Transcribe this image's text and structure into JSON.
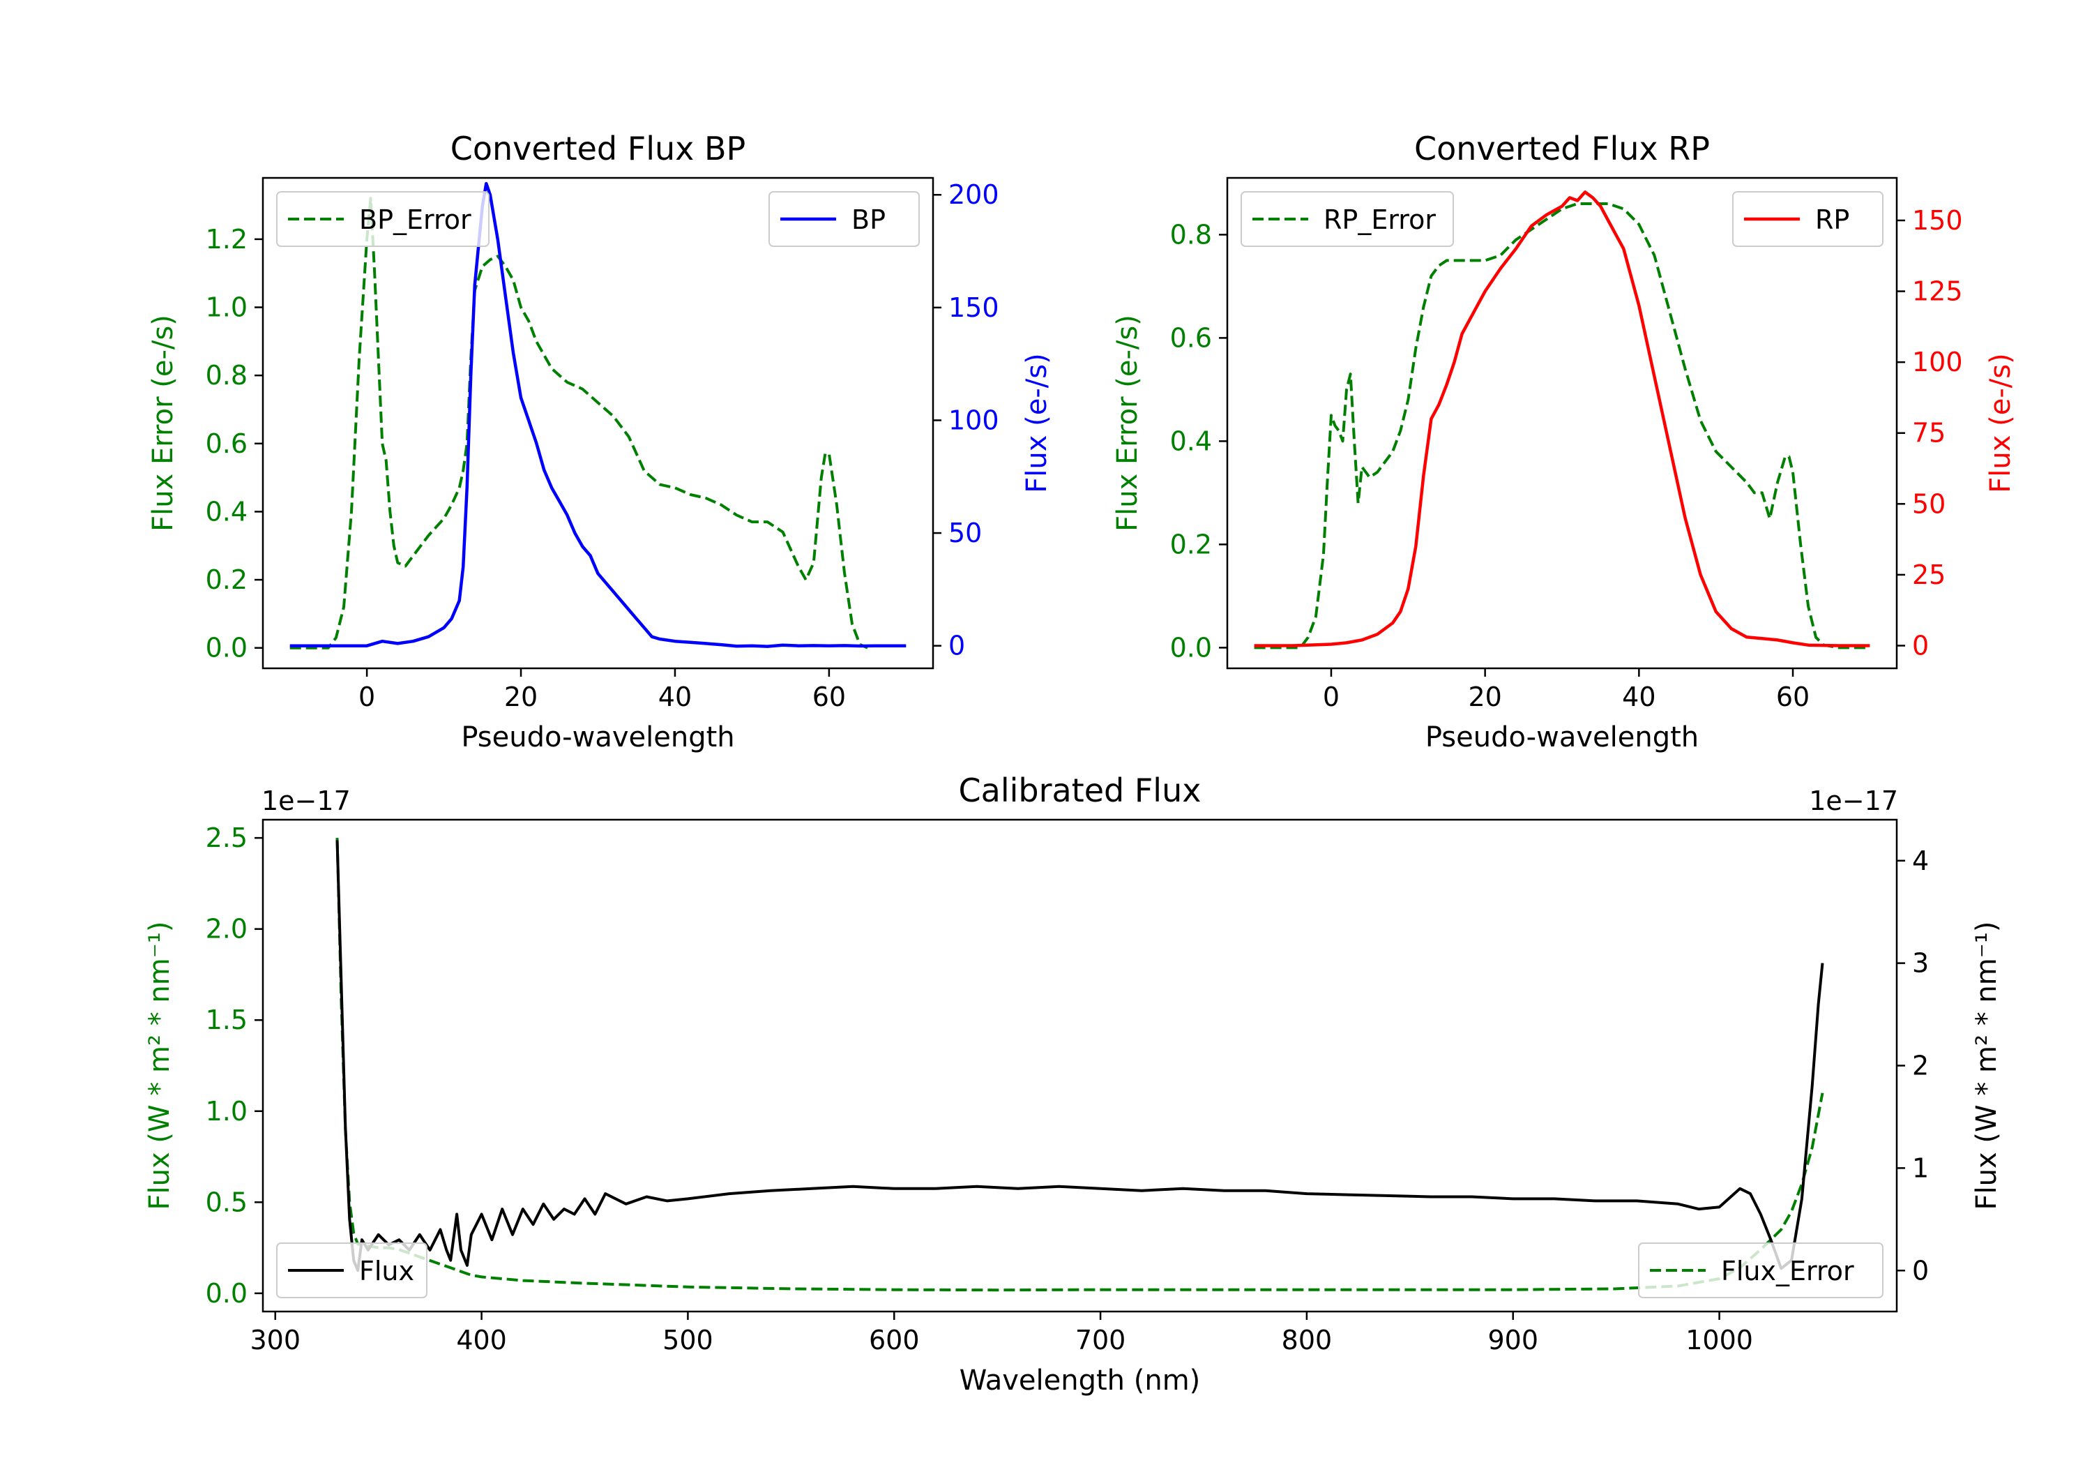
{
  "chart_data": [
    {
      "id": "bp",
      "type": "line",
      "title": "Converted Flux BP",
      "xlabel": "Pseudo-wavelength",
      "xlim": [
        -13.5,
        73.5
      ],
      "x_ticks": [
        0,
        20,
        40,
        60
      ],
      "y_left": {
        "label": "Flux Error (e-/s)",
        "color": "#008000",
        "lim": [
          -0.06,
          1.38
        ],
        "ticks": [
          0.0,
          0.2,
          0.4,
          0.6,
          0.8,
          1.0,
          1.2
        ],
        "tick_labels": [
          "0.0",
          "0.2",
          "0.4",
          "0.6",
          "0.8",
          "1.0",
          "1.2"
        ]
      },
      "y_right": {
        "label": "Flux (e-/s)",
        "color": "#0000ff",
        "lim": [
          -10,
          207.5
        ],
        "ticks": [
          0,
          50,
          100,
          150,
          200
        ],
        "tick_labels": [
          "0",
          "50",
          "100",
          "150",
          "200"
        ]
      },
      "series": [
        {
          "name": "BP_Error",
          "axis": "left",
          "color": "#008000",
          "dash": true,
          "legend_loc": "upper left",
          "x": [
            -10,
            -5,
            -4,
            -3,
            -2,
            -1,
            0,
            0.5,
            1,
            1.5,
            2,
            2.5,
            3,
            3.5,
            4,
            5,
            6,
            8,
            10,
            11,
            12,
            12.5,
            13,
            13.5,
            14,
            15,
            16,
            17,
            18,
            19,
            20,
            21,
            22,
            23,
            24,
            25,
            26,
            27,
            28,
            30,
            32,
            34,
            36,
            38,
            40,
            42,
            44,
            46,
            48,
            50,
            52,
            54,
            56,
            57,
            58,
            59,
            59.5,
            60,
            61,
            62,
            63,
            64,
            65
          ],
          "y": [
            0,
            0,
            0.03,
            0.12,
            0.4,
            0.85,
            1.2,
            1.32,
            1.1,
            0.85,
            0.6,
            0.55,
            0.4,
            0.3,
            0.25,
            0.24,
            0.27,
            0.33,
            0.38,
            0.42,
            0.47,
            0.52,
            0.6,
            0.85,
            1.05,
            1.12,
            1.14,
            1.15,
            1.12,
            1.08,
            1.0,
            0.96,
            0.9,
            0.86,
            0.82,
            0.8,
            0.78,
            0.77,
            0.76,
            0.72,
            0.68,
            0.62,
            0.52,
            0.48,
            0.47,
            0.45,
            0.44,
            0.42,
            0.39,
            0.37,
            0.37,
            0.34,
            0.24,
            0.2,
            0.25,
            0.5,
            0.57,
            0.57,
            0.42,
            0.22,
            0.07,
            0.01,
            0
          ],
          "line_width": 4
        },
        {
          "name": "BP",
          "axis": "right",
          "color": "#0000ff",
          "dash": false,
          "legend_loc": "upper right",
          "x": [
            -10,
            -5,
            0,
            2,
            4,
            6,
            8,
            10,
            11,
            12,
            12.5,
            13,
            13.5,
            14,
            15,
            15.5,
            16,
            17,
            18,
            19,
            20,
            21,
            22,
            23,
            24,
            25,
            26,
            27,
            28,
            29,
            30,
            32,
            34,
            35,
            36,
            37,
            38,
            40,
            42,
            44,
            46,
            48,
            50,
            52,
            54,
            56,
            58,
            60,
            62,
            64,
            66,
            68,
            70
          ],
          "y": [
            0,
            0,
            0,
            2,
            1,
            2,
            4,
            8,
            12,
            20,
            35,
            70,
            120,
            160,
            195,
            205,
            200,
            180,
            155,
            130,
            110,
            100,
            90,
            78,
            70,
            64,
            58,
            50,
            44,
            40,
            32,
            24,
            16,
            12,
            8,
            4,
            3,
            2,
            1.5,
            1,
            0.5,
            -0.2,
            0,
            -0.3,
            0.3,
            0,
            0.1,
            0,
            0.1,
            -0.1,
            0,
            0,
            0
          ],
          "line_width": 4.5
        }
      ]
    },
    {
      "id": "rp",
      "type": "line",
      "title": "Converted Flux RP",
      "xlabel": "Pseudo-wavelength",
      "xlim": [
        -13.5,
        73.5
      ],
      "x_ticks": [
        0,
        20,
        40,
        60
      ],
      "y_left": {
        "label": "Flux Error (e-/s)",
        "color": "#008000",
        "lim": [
          -0.04,
          0.91
        ],
        "ticks": [
          0.0,
          0.2,
          0.4,
          0.6,
          0.8
        ],
        "tick_labels": [
          "0.0",
          "0.2",
          "0.4",
          "0.6",
          "0.8"
        ]
      },
      "y_right": {
        "label": "Flux (e-/s)",
        "color": "#ff0000",
        "lim": [
          -8,
          165
        ],
        "ticks": [
          0,
          25,
          50,
          75,
          100,
          125,
          150
        ],
        "tick_labels": [
          "0",
          "25",
          "50",
          "75",
          "100",
          "125",
          "150"
        ]
      },
      "series": [
        {
          "name": "RP_Error",
          "axis": "left",
          "color": "#008000",
          "dash": true,
          "legend_loc": "upper left",
          "x": [
            -10,
            -4,
            -3,
            -2,
            -1,
            -0.5,
            0,
            0.5,
            1,
            1.5,
            2,
            2.5,
            3,
            3.5,
            4,
            5,
            6,
            7,
            8,
            9,
            10,
            11,
            12,
            13,
            14,
            15,
            16,
            18,
            20,
            22,
            24,
            26,
            28,
            30,
            32,
            33,
            34,
            36,
            38,
            40,
            42,
            44,
            46,
            48,
            50,
            52,
            54,
            55,
            56,
            57,
            58,
            59,
            59.5,
            60,
            61,
            62,
            63,
            64,
            66,
            70
          ],
          "y": [
            0,
            0,
            0.02,
            0.06,
            0.18,
            0.32,
            0.45,
            0.43,
            0.42,
            0.4,
            0.5,
            0.53,
            0.4,
            0.28,
            0.35,
            0.33,
            0.34,
            0.36,
            0.38,
            0.42,
            0.48,
            0.58,
            0.66,
            0.72,
            0.74,
            0.75,
            0.75,
            0.75,
            0.75,
            0.76,
            0.79,
            0.81,
            0.83,
            0.85,
            0.86,
            0.86,
            0.86,
            0.86,
            0.85,
            0.82,
            0.76,
            0.65,
            0.54,
            0.44,
            0.38,
            0.35,
            0.32,
            0.3,
            0.3,
            0.25,
            0.32,
            0.37,
            0.37,
            0.34,
            0.2,
            0.08,
            0.02,
            0.005,
            0,
            0
          ],
          "line_width": 4
        },
        {
          "name": "RP",
          "axis": "right",
          "color": "#ff0000",
          "dash": false,
          "legend_loc": "upper right",
          "x": [
            -10,
            -5,
            0,
            2,
            4,
            6,
            8,
            9,
            10,
            11,
            12,
            13,
            14,
            15,
            16,
            17,
            18,
            19,
            20,
            22,
            24,
            26,
            28,
            30,
            31,
            32,
            33,
            34,
            35,
            36,
            37,
            38,
            40,
            42,
            44,
            46,
            48,
            50,
            52,
            54,
            56,
            58,
            60,
            62,
            66,
            70
          ],
          "y": [
            0,
            0,
            0.5,
            1,
            2,
            4,
            8,
            12,
            20,
            35,
            60,
            80,
            85,
            92,
            100,
            110,
            115,
            120,
            125,
            133,
            140,
            148,
            152,
            155,
            158,
            157,
            160,
            158,
            155,
            150,
            145,
            140,
            120,
            95,
            70,
            45,
            25,
            12,
            6,
            3,
            2.5,
            2,
            1,
            0.2,
            0,
            0
          ],
          "line_width": 4.5
        }
      ]
    },
    {
      "id": "cal",
      "type": "line",
      "title": "Calibrated Flux",
      "xlabel": "Wavelength (nm)",
      "xlim": [
        294,
        1086
      ],
      "x_ticks": [
        300,
        400,
        500,
        600,
        700,
        800,
        900,
        1000
      ],
      "y_left": {
        "label": "Flux (W * m² * nm⁻¹)",
        "color": "#008000",
        "lim": [
          -0.1,
          2.6
        ],
        "ticks": [
          0.0,
          0.5,
          1.0,
          1.5,
          2.0,
          2.5
        ],
        "tick_labels": [
          "0.0",
          "0.5",
          "1.0",
          "1.5",
          "2.0",
          "2.5"
        ],
        "offset_label": "1e−17"
      },
      "y_right": {
        "label": "Flux (W * m² * nm⁻¹)",
        "color": "#000000",
        "lim": [
          -0.4,
          4.4
        ],
        "ticks": [
          0,
          1,
          2,
          3,
          4
        ],
        "tick_labels": [
          "0",
          "1",
          "2",
          "3",
          "4"
        ],
        "offset_label": "1e−17"
      },
      "series": [
        {
          "name": "Flux_Error",
          "axis": "left",
          "color": "#008000",
          "dash": true,
          "legend_loc": "lower right",
          "x": [
            330,
            332,
            334,
            336,
            338,
            340,
            345,
            350,
            355,
            360,
            365,
            370,
            375,
            380,
            385,
            390,
            395,
            400,
            410,
            420,
            430,
            440,
            450,
            475,
            500,
            550,
            600,
            650,
            700,
            750,
            800,
            850,
            900,
            950,
            980,
            1000,
            1010,
            1020,
            1030,
            1035,
            1040,
            1045,
            1050
          ],
          "y": [
            2.5,
            1.6,
            0.9,
            0.5,
            0.33,
            0.27,
            0.26,
            0.25,
            0.25,
            0.24,
            0.22,
            0.2,
            0.18,
            0.16,
            0.14,
            0.12,
            0.1,
            0.09,
            0.08,
            0.07,
            0.065,
            0.06,
            0.055,
            0.045,
            0.035,
            0.025,
            0.02,
            0.018,
            0.02,
            0.02,
            0.02,
            0.02,
            0.02,
            0.025,
            0.04,
            0.08,
            0.14,
            0.24,
            0.35,
            0.45,
            0.6,
            0.8,
            1.1
          ],
          "line_width": 4
        },
        {
          "name": "Flux",
          "axis": "right",
          "color": "#000000",
          "dash": false,
          "legend_loc": "lower left",
          "x": [
            330,
            332,
            334,
            336,
            338,
            340,
            342,
            345,
            350,
            355,
            360,
            365,
            370,
            375,
            380,
            383,
            385,
            388,
            390,
            393,
            395,
            400,
            405,
            410,
            415,
            420,
            425,
            430,
            435,
            440,
            445,
            450,
            455,
            460,
            470,
            480,
            490,
            500,
            520,
            540,
            560,
            580,
            600,
            620,
            640,
            660,
            680,
            700,
            720,
            740,
            760,
            780,
            800,
            820,
            840,
            860,
            880,
            900,
            920,
            940,
            960,
            980,
            990,
            1000,
            1010,
            1015,
            1020,
            1025,
            1030,
            1035,
            1040,
            1045,
            1048,
            1050
          ],
          "y": [
            4.2,
            2.8,
            1.4,
            0.5,
            0.1,
            0.0,
            0.3,
            0.2,
            0.35,
            0.25,
            0.3,
            0.2,
            0.35,
            0.2,
            0.4,
            0.2,
            0.1,
            0.55,
            0.2,
            0.05,
            0.35,
            0.55,
            0.3,
            0.6,
            0.35,
            0.6,
            0.45,
            0.65,
            0.5,
            0.6,
            0.55,
            0.7,
            0.55,
            0.75,
            0.65,
            0.72,
            0.68,
            0.7,
            0.75,
            0.78,
            0.8,
            0.82,
            0.8,
            0.8,
            0.82,
            0.8,
            0.82,
            0.8,
            0.78,
            0.8,
            0.78,
            0.78,
            0.75,
            0.74,
            0.73,
            0.72,
            0.72,
            0.7,
            0.7,
            0.68,
            0.68,
            0.65,
            0.6,
            0.62,
            0.8,
            0.75,
            0.55,
            0.3,
            0.02,
            0.1,
            0.7,
            1.8,
            2.6,
            3.0
          ],
          "line_width": 4
        }
      ]
    }
  ]
}
